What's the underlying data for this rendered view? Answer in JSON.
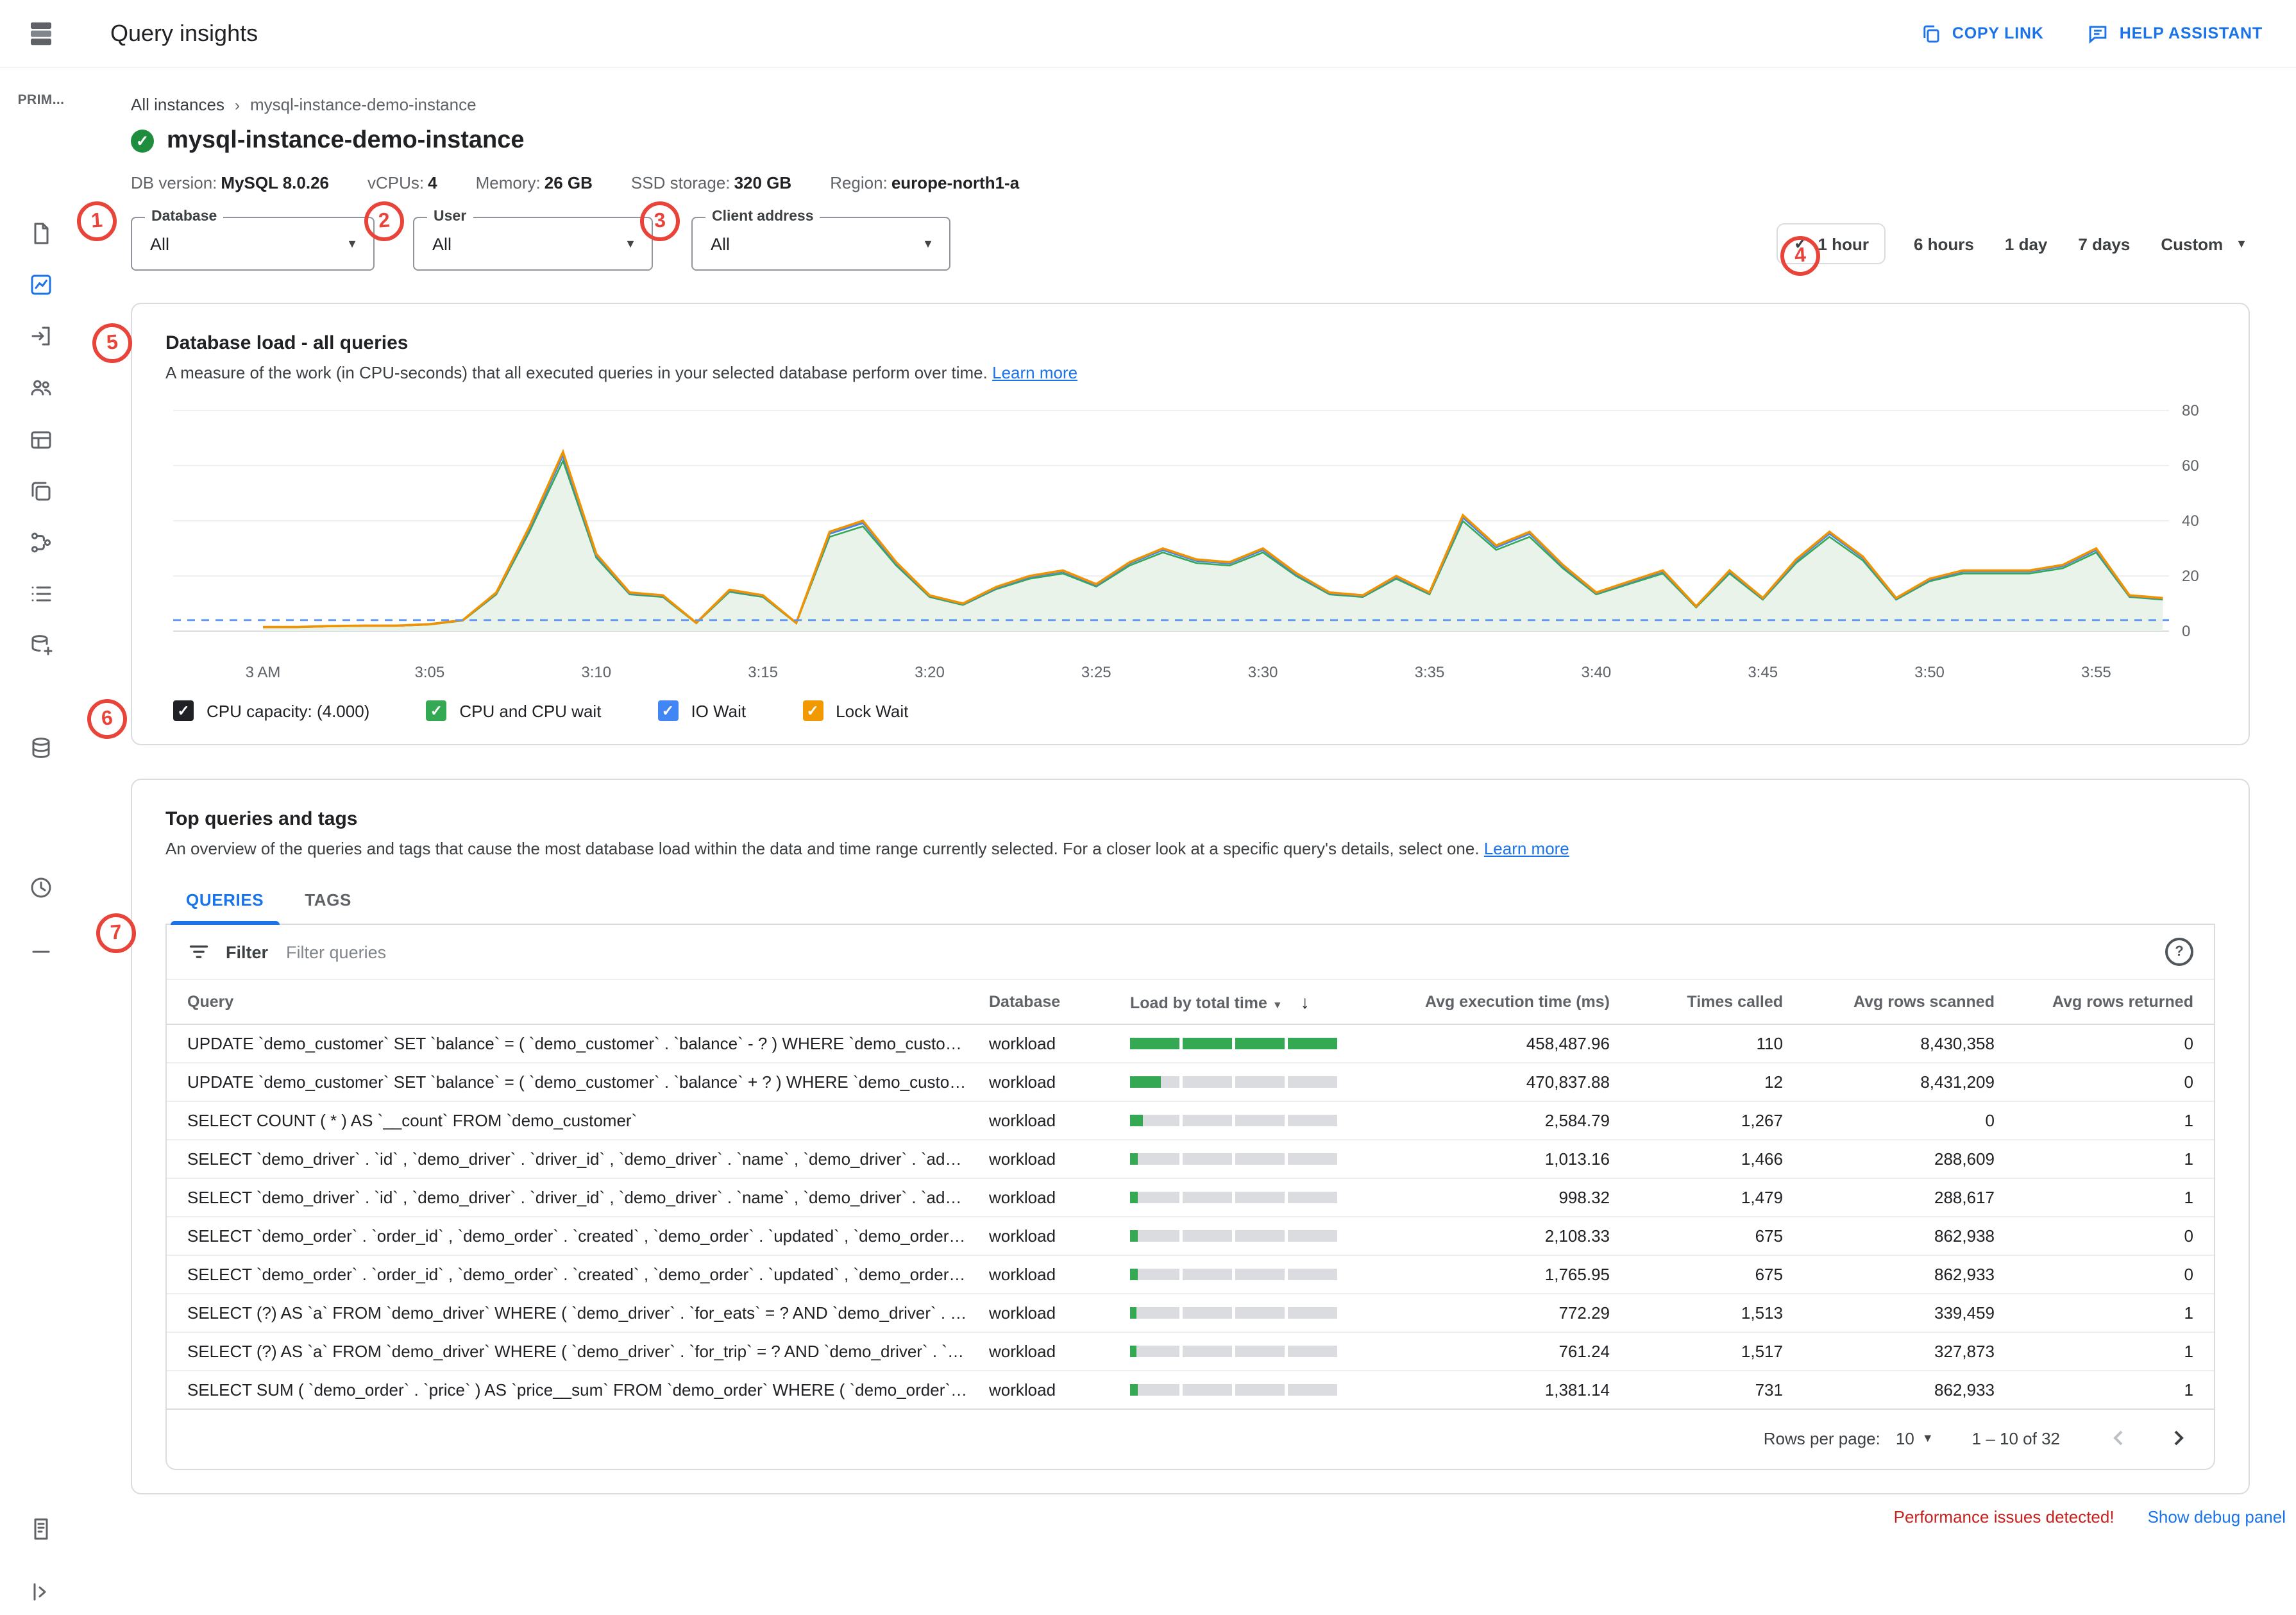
{
  "header": {
    "title": "Query insights",
    "copy_link": "COPY LINK",
    "help_assistant": "HELP ASSISTANT"
  },
  "sidebar": {
    "project_label": "PRIM...",
    "items": [
      {
        "name": "overview"
      },
      {
        "name": "query-insights",
        "active": true
      },
      {
        "name": "connections"
      },
      {
        "name": "users"
      },
      {
        "name": "databases"
      },
      {
        "name": "backups"
      },
      {
        "name": "replicas"
      },
      {
        "name": "operations"
      },
      {
        "name": "integrations"
      },
      {
        "name": "system-insights"
      },
      {
        "name": "advisors"
      },
      {
        "name": "divider"
      },
      {
        "name": "release-notes"
      },
      {
        "name": "expand-panel"
      }
    ]
  },
  "breadcrumb": {
    "parent": "All instances",
    "current": "mysql-instance-demo-instance"
  },
  "instance": {
    "name": "mysql-instance-demo-instance",
    "meta": [
      {
        "label": "DB version:",
        "value": "MySQL 8.0.26"
      },
      {
        "label": "vCPUs:",
        "value": "4"
      },
      {
        "label": "Memory:",
        "value": "26 GB"
      },
      {
        "label": "SSD storage:",
        "value": "320 GB"
      },
      {
        "label": "Region:",
        "value": "europe-north1-a"
      }
    ]
  },
  "filters": [
    {
      "label": "Database",
      "value": "All"
    },
    {
      "label": "User",
      "value": "All"
    },
    {
      "label": "Client address",
      "value": "All"
    }
  ],
  "time_range": {
    "options": [
      "1 hour",
      "6 hours",
      "1 day",
      "7 days"
    ],
    "selected": "1 hour",
    "custom_label": "Custom"
  },
  "load_card": {
    "title": "Database load - all queries",
    "description": "A measure of the work (in CPU-seconds) that all executed queries in your selected database perform over time.",
    "learn_more": "Learn more",
    "legend": [
      {
        "label": "CPU capacity: (4.000)",
        "color": "#202124"
      },
      {
        "label": "CPU and CPU wait",
        "color": "#34a853"
      },
      {
        "label": "IO Wait",
        "color": "#4285f4"
      },
      {
        "label": "Lock Wait",
        "color": "#f29900"
      }
    ]
  },
  "chart_data": {
    "type": "area",
    "title": "Database load - all queries",
    "x_labels": [
      "3 AM",
      "3:05",
      "3:10",
      "3:15",
      "3:20",
      "3:25",
      "3:30",
      "3:35",
      "3:40",
      "3:45",
      "3:50",
      "3:55"
    ],
    "x_minutes_per_point": 1,
    "y_ticks": [
      0,
      20,
      40,
      60,
      80
    ],
    "ylim": [
      0,
      80
    ],
    "capacity": 4.0,
    "series": [
      {
        "name": "CPU and CPU wait",
        "color": "#34a853",
        "fill": "#e9f3ea",
        "scale": 0.95
      },
      {
        "name": "IO Wait",
        "color": "#4285f4",
        "scale": 0.98
      },
      {
        "name": "Lock Wait",
        "color": "#f09300",
        "scale": 1.0
      }
    ],
    "values": [
      1.5,
      1.5,
      1.8,
      2,
      2,
      2.5,
      4,
      14,
      38,
      65,
      28,
      14,
      13,
      3,
      15,
      13,
      3,
      36,
      40,
      25,
      13,
      10,
      16,
      20,
      22,
      17,
      25,
      30,
      26,
      25,
      30,
      21,
      14,
      13,
      20,
      14,
      42,
      31,
      36,
      24,
      14,
      18,
      22,
      9,
      22,
      12,
      26,
      36,
      27,
      12,
      19,
      22,
      22,
      22,
      24,
      30,
      13,
      12
    ]
  },
  "queries_card": {
    "title": "Top queries and tags",
    "description": "An overview of the queries and tags that cause the most database load within the data and time range currently selected. For a closer look at a specific query's details, select one.",
    "learn_more": "Learn more",
    "tabs": [
      {
        "label": "QUERIES",
        "active": true
      },
      {
        "label": "TAGS",
        "active": false
      }
    ]
  },
  "filter_bar": {
    "label": "Filter",
    "placeholder": "Filter queries"
  },
  "table": {
    "columns": [
      {
        "label": "Query",
        "align": "left"
      },
      {
        "label": "Database",
        "align": "left"
      },
      {
        "label": "Load by total time",
        "align": "left",
        "menu_caret": true,
        "sorted_desc": true
      },
      {
        "label": "Avg execution time (ms)",
        "align": "right"
      },
      {
        "label": "Times called",
        "align": "right"
      },
      {
        "label": "Avg rows scanned",
        "align": "right"
      },
      {
        "label": "Avg rows returned",
        "align": "right"
      }
    ],
    "rows": [
      {
        "query": "UPDATE `demo_customer` SET `balance` = ( `demo_customer` . `balance` - ? ) WHERE `demo_customer` . `name`…",
        "database": "workload",
        "load_pct": 100,
        "avg_exec_ms": "458,487.96",
        "times_called": "110",
        "avg_rows_scanned": "8,430,358",
        "avg_rows_returned": "0"
      },
      {
        "query": "UPDATE `demo_customer` SET `balance` = ( `demo_customer` . `balance` + ? ) WHERE `demo_customer` . `name`…",
        "database": "workload",
        "load_pct": 15,
        "avg_exec_ms": "470,837.88",
        "times_called": "12",
        "avg_rows_scanned": "8,431,209",
        "avg_rows_returned": "0"
      },
      {
        "query": "SELECT COUNT ( * ) AS `__count` FROM `demo_customer`",
        "database": "workload",
        "load_pct": 6,
        "avg_exec_ms": "2,584.79",
        "times_called": "1,267",
        "avg_rows_scanned": "0",
        "avg_rows_returned": "1"
      },
      {
        "query": "SELECT `demo_driver` . `id` , `demo_driver` . `driver_id` , `demo_driver` . `name` , `demo_driver` . `address` , `dem…",
        "database": "workload",
        "load_pct": 4,
        "avg_exec_ms": "1,013.16",
        "times_called": "1,466",
        "avg_rows_scanned": "288,609",
        "avg_rows_returned": "1"
      },
      {
        "query": "SELECT `demo_driver` . `id` , `demo_driver` . `driver_id` , `demo_driver` . `name` , `demo_driver` . `address` , `dem…",
        "database": "workload",
        "load_pct": 4,
        "avg_exec_ms": "998.32",
        "times_called": "1,479",
        "avg_rows_scanned": "288,617",
        "avg_rows_returned": "1"
      },
      {
        "query": "SELECT `demo_order` . `order_id` , `demo_order` . `created` , `demo_order` . `updated` , `demo_order` . `city` , `de…",
        "database": "workload",
        "load_pct": 4,
        "avg_exec_ms": "2,108.33",
        "times_called": "675",
        "avg_rows_scanned": "862,938",
        "avg_rows_returned": "0"
      },
      {
        "query": "SELECT `demo_order` . `order_id` , `demo_order` . `created` , `demo_order` . `updated` , `demo_order` . `city` , `de…",
        "database": "workload",
        "load_pct": 4,
        "avg_exec_ms": "1,765.95",
        "times_called": "675",
        "avg_rows_scanned": "862,933",
        "avg_rows_returned": "0"
      },
      {
        "query": "SELECT (?) AS `a` FROM `demo_driver` WHERE ( `demo_driver` . `for_eats` = ? AND `demo_driver` . `current_order…",
        "database": "workload",
        "load_pct": 3,
        "avg_exec_ms": "772.29",
        "times_called": "1,513",
        "avg_rows_scanned": "339,459",
        "avg_rows_returned": "1"
      },
      {
        "query": "SELECT (?) AS `a` FROM `demo_driver` WHERE ( `demo_driver` . `for_trip` = ? AND `demo_driver` . `current_order`…",
        "database": "workload",
        "load_pct": 3,
        "avg_exec_ms": "761.24",
        "times_called": "1,517",
        "avg_rows_scanned": "327,873",
        "avg_rows_returned": "1"
      },
      {
        "query": "SELECT SUM ( `demo_order` . `price` ) AS `price__sum` FROM `demo_order` WHERE ( `demo_order` . `customer_i…",
        "database": "workload",
        "load_pct": 4,
        "avg_exec_ms": "1,381.14",
        "times_called": "731",
        "avg_rows_scanned": "862,933",
        "avg_rows_returned": "1"
      }
    ]
  },
  "pagination": {
    "rows_per_page_label": "Rows per page:",
    "rows_per_page_value": "10",
    "range": "1 – 10 of 32"
  },
  "footer": {
    "warning": "Performance issues detected!",
    "debug_link": "Show debug panel"
  },
  "annotations": [
    "1",
    "2",
    "3",
    "4",
    "5",
    "6",
    "7"
  ]
}
